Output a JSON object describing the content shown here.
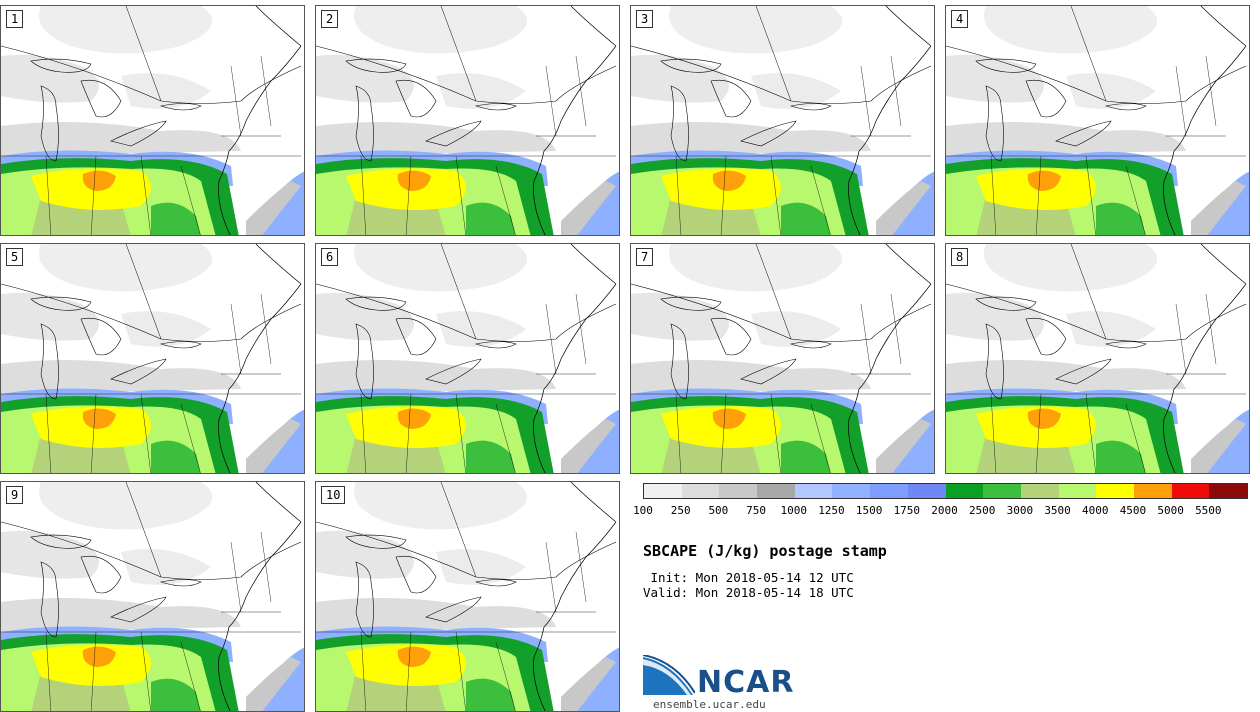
{
  "members": [
    {
      "label": "1"
    },
    {
      "label": "2"
    },
    {
      "label": "3"
    },
    {
      "label": "4"
    },
    {
      "label": "5"
    },
    {
      "label": "6"
    },
    {
      "label": "7"
    },
    {
      "label": "8"
    },
    {
      "label": "9"
    },
    {
      "label": "10"
    }
  ],
  "legend": {
    "ticks": [
      "100",
      "250",
      "500",
      "750",
      "1000",
      "1250",
      "1500",
      "1750",
      "2000",
      "2500",
      "3000",
      "3500",
      "4000",
      "4500",
      "5000",
      "5500"
    ],
    "colors": [
      "#f0f0f0",
      "#dcdcdc",
      "#c8c8c8",
      "#a8a8a8",
      "#b0c8ff",
      "#92b2ff",
      "#7d9dff",
      "#6f88f5",
      "#0aa022",
      "#3cbf3c",
      "#b4d27a",
      "#b8f86e",
      "#ffff00",
      "#ffa00a",
      "#f00a0a",
      "#8c0a0a"
    ]
  },
  "title": "SBCAPE (J/kg) postage stamp",
  "init_line": " Init: Mon 2018-05-14 12 UTC",
  "valid_line": "Valid: Mon 2018-05-14 18 UTC",
  "logo_text": "NCAR",
  "url": "ensemble.ucar.edu"
}
